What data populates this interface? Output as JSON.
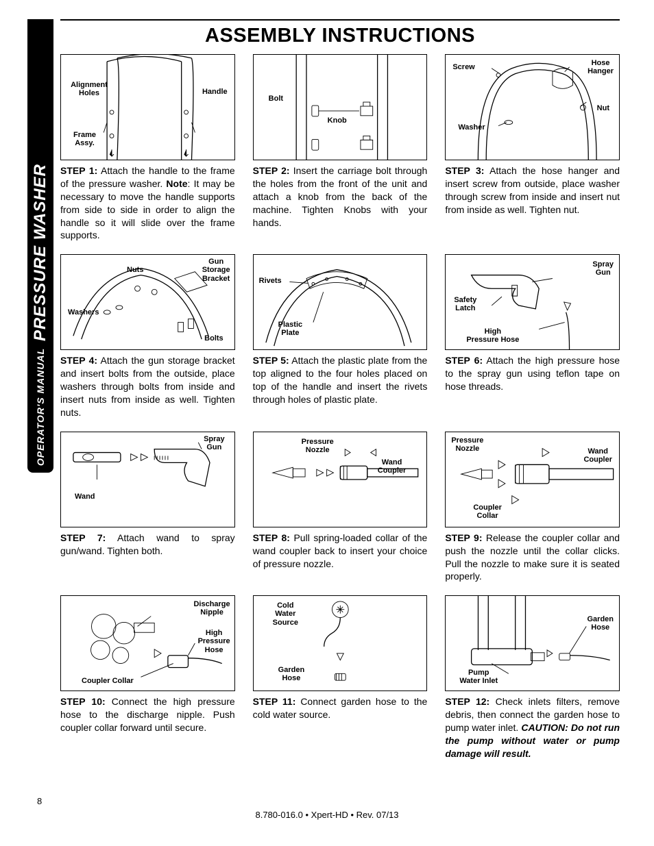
{
  "page_number": "8",
  "side_label_small": "OPERATOR'S MANUAL",
  "side_label_big": "PRESSURE WASHER",
  "title": "ASSEMBLY INSTRUCTIONS",
  "footer": "8.780-016.0 • Xpert-HD • Rev. 07/13",
  "figs": {
    "f1": {
      "alignment": "Alignment\nHoles",
      "handle": "Handle",
      "frame": "Frame\nAssy."
    },
    "f2": {
      "bolt": "Bolt",
      "knob": "Knob"
    },
    "f3": {
      "screw": "Screw",
      "hose_hanger": "Hose\nHanger",
      "nut": "Nut",
      "washer": "Washer"
    },
    "f4": {
      "nuts": "Nuts",
      "gun_storage": "Gun\nStorage\nBracket",
      "washers": "Washers",
      "bolts": "Bolts"
    },
    "f5": {
      "rivets": "Rivets",
      "plate": "Plastic\nPlate"
    },
    "f6": {
      "spray_gun": "Spray\nGun",
      "safety": "Safety\nLatch",
      "hose": "High\nPressure Hose"
    },
    "f7": {
      "spray_gun": "Spray\nGun",
      "wand": "Wand"
    },
    "f8": {
      "nozzle": "Pressure\nNozzle",
      "coupler": "Wand\nCoupler"
    },
    "f9": {
      "nozzle": "Pressure\nNozzle",
      "coupler": "Wand\nCoupler",
      "collar": "Coupler\nCollar"
    },
    "f10": {
      "nipple": "Discharge\nNipple",
      "hose": "High\nPressure\nHose",
      "collar": "Coupler Collar"
    },
    "f11": {
      "source": "Cold\nWater\nSource",
      "hose": "Garden\nHose"
    },
    "f12": {
      "hose": "Garden\nHose",
      "inlet": "Pump\nWater Inlet"
    }
  },
  "steps": {
    "s1": {
      "label": "STEP 1:",
      "text": " Attach the handle to the frame of the pressure washer. ",
      "note_label": "Note",
      "note_text": ": It may be necessary to move the handle supports from side to side in order to align the handle so it will slide over the frame supports."
    },
    "s2": {
      "label": "STEP 2:",
      "text": " Insert the carriage bolt through the holes from the front of the unit and attach a knob from the back of the machine. Tighten Knobs with your hands."
    },
    "s3": {
      "label": "STEP 3:",
      "text": " Attach the hose hanger and insert screw from outside, place washer through screw from inside and insert nut from inside as well. Tighten nut."
    },
    "s4": {
      "label": "STEP 4:",
      "text": " Attach the gun storage bracket and insert bolts from the outside, place washers through bolts from inside and insert nuts from inside as well. Tighten nuts."
    },
    "s5": {
      "label": "STEP 5:",
      "text": " Attach the plastic plate from the top aligned to the four holes placed on top of the handle and insert the rivets through holes of plastic plate."
    },
    "s6": {
      "label": "STEP 6:",
      "text": " Attach the high pressure hose to the spray gun using teflon tape on hose threads."
    },
    "s7": {
      "label": "STEP 7:",
      "text": " Attach wand to spray gun/wand.  Tighten both."
    },
    "s8": {
      "label": "STEP 8:",
      "text": " Pull spring-loaded collar of the wand coupler back to insert your choice of pressure nozzle."
    },
    "s9": {
      "label": "STEP 9:",
      "text": " Release the coupler collar and push the nozzle until the collar clicks.  Pull the nozzle to make sure it is seated properly."
    },
    "s10": {
      "label": "STEP 10:",
      "text": " Connect the high pressure hose to the discharge nipple. Push coupler collar forward until secure."
    },
    "s11": {
      "label": "STEP 11:",
      "text": " Connect garden hose to the cold water source."
    },
    "s12": {
      "label": "STEP 12:",
      "text": " Check inlets filters, remove debris, then connect the garden hose to pump water inlet. ",
      "caution": "CAUTION: Do not run the pump without water or pump damage will result."
    }
  }
}
